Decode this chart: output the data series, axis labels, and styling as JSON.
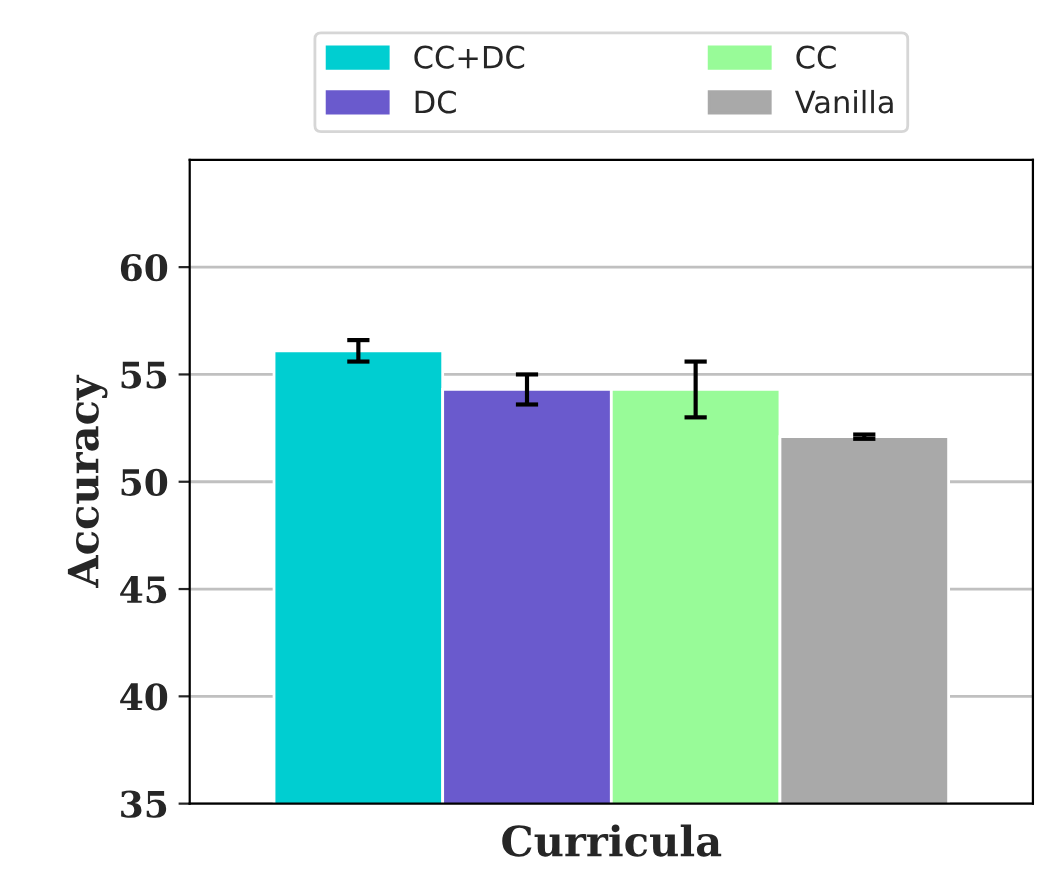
{
  "chart_data": {
    "type": "bar",
    "xlabel": "Curricula",
    "ylabel": "Accuracy",
    "categories": [
      null
    ],
    "series": [
      {
        "name": "CC+DC",
        "color": "#00ced1",
        "values": [
          56.1
        ],
        "errors": [
          0.5
        ]
      },
      {
        "name": "DC",
        "color": "#6a5acd",
        "values": [
          54.3
        ],
        "errors": [
          0.7
        ]
      },
      {
        "name": "CC",
        "color": "#98fb98",
        "values": [
          54.3
        ],
        "errors": [
          1.3
        ]
      },
      {
        "name": "Vanilla",
        "color": "#a9a9a9",
        "values": [
          52.1
        ],
        "errors": [
          0.1
        ]
      }
    ],
    "ylim": [
      35,
      65
    ],
    "yticks": [
      35,
      40,
      45,
      50,
      55,
      60
    ],
    "grid": "y",
    "legend": "top"
  }
}
